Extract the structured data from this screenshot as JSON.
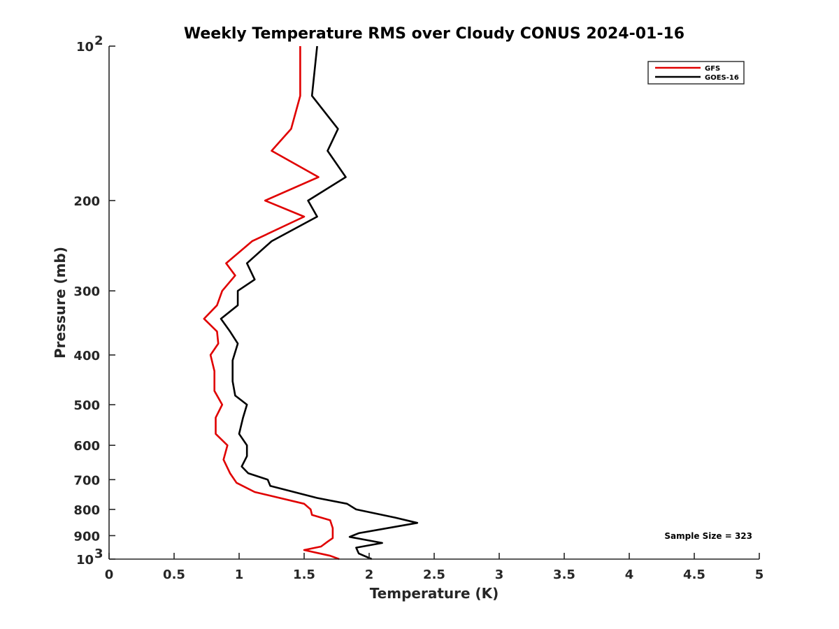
{
  "chart_data": {
    "type": "line",
    "title": "Weekly Temperature RMS over Cloudy CONUS 2024-01-16",
    "xlabel": "Temperature (K)",
    "ylabel": "Pressure (mb)",
    "xlim": [
      0,
      5
    ],
    "ylim": [
      100,
      1000
    ],
    "yscale": "log",
    "y_reversed": true,
    "x_ticks": [
      {
        "value": 0,
        "label": "0"
      },
      {
        "value": 0.5,
        "label": "0.5"
      },
      {
        "value": 1,
        "label": "1"
      },
      {
        "value": 1.5,
        "label": "1.5"
      },
      {
        "value": 2,
        "label": "2"
      },
      {
        "value": 2.5,
        "label": "2.5"
      },
      {
        "value": 3,
        "label": "3"
      },
      {
        "value": 3.5,
        "label": "3.5"
      },
      {
        "value": 4,
        "label": "4"
      },
      {
        "value": 4.5,
        "label": "4.5"
      },
      {
        "value": 5,
        "label": "5"
      }
    ],
    "y_ticks": [
      {
        "value": 100,
        "label": "10",
        "exp": "2"
      },
      {
        "value": 200,
        "label": "200"
      },
      {
        "value": 300,
        "label": "300"
      },
      {
        "value": 400,
        "label": "400"
      },
      {
        "value": 500,
        "label": "500"
      },
      {
        "value": 600,
        "label": "600"
      },
      {
        "value": 700,
        "label": "700"
      },
      {
        "value": 800,
        "label": "800"
      },
      {
        "value": 900,
        "label": "900"
      },
      {
        "value": 1000,
        "label": "10",
        "exp": "3"
      }
    ],
    "grid": false,
    "legend_position": "top-right",
    "annotation": "Sample Size = 323",
    "series": [
      {
        "name": "GFS",
        "color": "#e00000",
        "points": [
          [
            1.47,
            100
          ],
          [
            1.47,
            115
          ],
          [
            1.47,
            125
          ],
          [
            1.4,
            145
          ],
          [
            1.25,
            160
          ],
          [
            1.61,
            180
          ],
          [
            1.2,
            200
          ],
          [
            1.5,
            215
          ],
          [
            1.1,
            240
          ],
          [
            0.9,
            265
          ],
          [
            0.97,
            280
          ],
          [
            0.87,
            300
          ],
          [
            0.83,
            320
          ],
          [
            0.73,
            340
          ],
          [
            0.83,
            360
          ],
          [
            0.84,
            380
          ],
          [
            0.78,
            400
          ],
          [
            0.81,
            430
          ],
          [
            0.81,
            470
          ],
          [
            0.87,
            500
          ],
          [
            0.82,
            530
          ],
          [
            0.82,
            570
          ],
          [
            0.91,
            600
          ],
          [
            0.88,
            640
          ],
          [
            0.93,
            680
          ],
          [
            0.98,
            710
          ],
          [
            1.12,
            740
          ],
          [
            1.5,
            780
          ],
          [
            1.55,
            800
          ],
          [
            1.56,
            820
          ],
          [
            1.7,
            840
          ],
          [
            1.72,
            870
          ],
          [
            1.72,
            910
          ],
          [
            1.68,
            925
          ],
          [
            1.63,
            945
          ],
          [
            1.5,
            960
          ],
          [
            1.7,
            985
          ],
          [
            1.77,
            1000
          ]
        ]
      },
      {
        "name": "GOES-16",
        "color": "#000000",
        "points": [
          [
            1.6,
            100
          ],
          [
            1.56,
            125
          ],
          [
            1.76,
            145
          ],
          [
            1.68,
            160
          ],
          [
            1.82,
            180
          ],
          [
            1.53,
            200
          ],
          [
            1.6,
            215
          ],
          [
            1.25,
            240
          ],
          [
            1.06,
            265
          ],
          [
            1.12,
            285
          ],
          [
            0.99,
            300
          ],
          [
            0.99,
            320
          ],
          [
            0.86,
            340
          ],
          [
            0.93,
            360
          ],
          [
            0.99,
            380
          ],
          [
            0.95,
            410
          ],
          [
            0.95,
            450
          ],
          [
            0.97,
            480
          ],
          [
            1.06,
            500
          ],
          [
            1.03,
            530
          ],
          [
            1.0,
            570
          ],
          [
            1.06,
            600
          ],
          [
            1.06,
            630
          ],
          [
            1.02,
            660
          ],
          [
            1.07,
            680
          ],
          [
            1.22,
            700
          ],
          [
            1.24,
            720
          ],
          [
            1.6,
            760
          ],
          [
            1.83,
            780
          ],
          [
            1.9,
            800
          ],
          [
            2.2,
            830
          ],
          [
            2.37,
            850
          ],
          [
            1.92,
            890
          ],
          [
            1.85,
            905
          ],
          [
            2.1,
            930
          ],
          [
            1.9,
            950
          ],
          [
            1.92,
            975
          ],
          [
            2.02,
            1000
          ]
        ]
      }
    ]
  }
}
